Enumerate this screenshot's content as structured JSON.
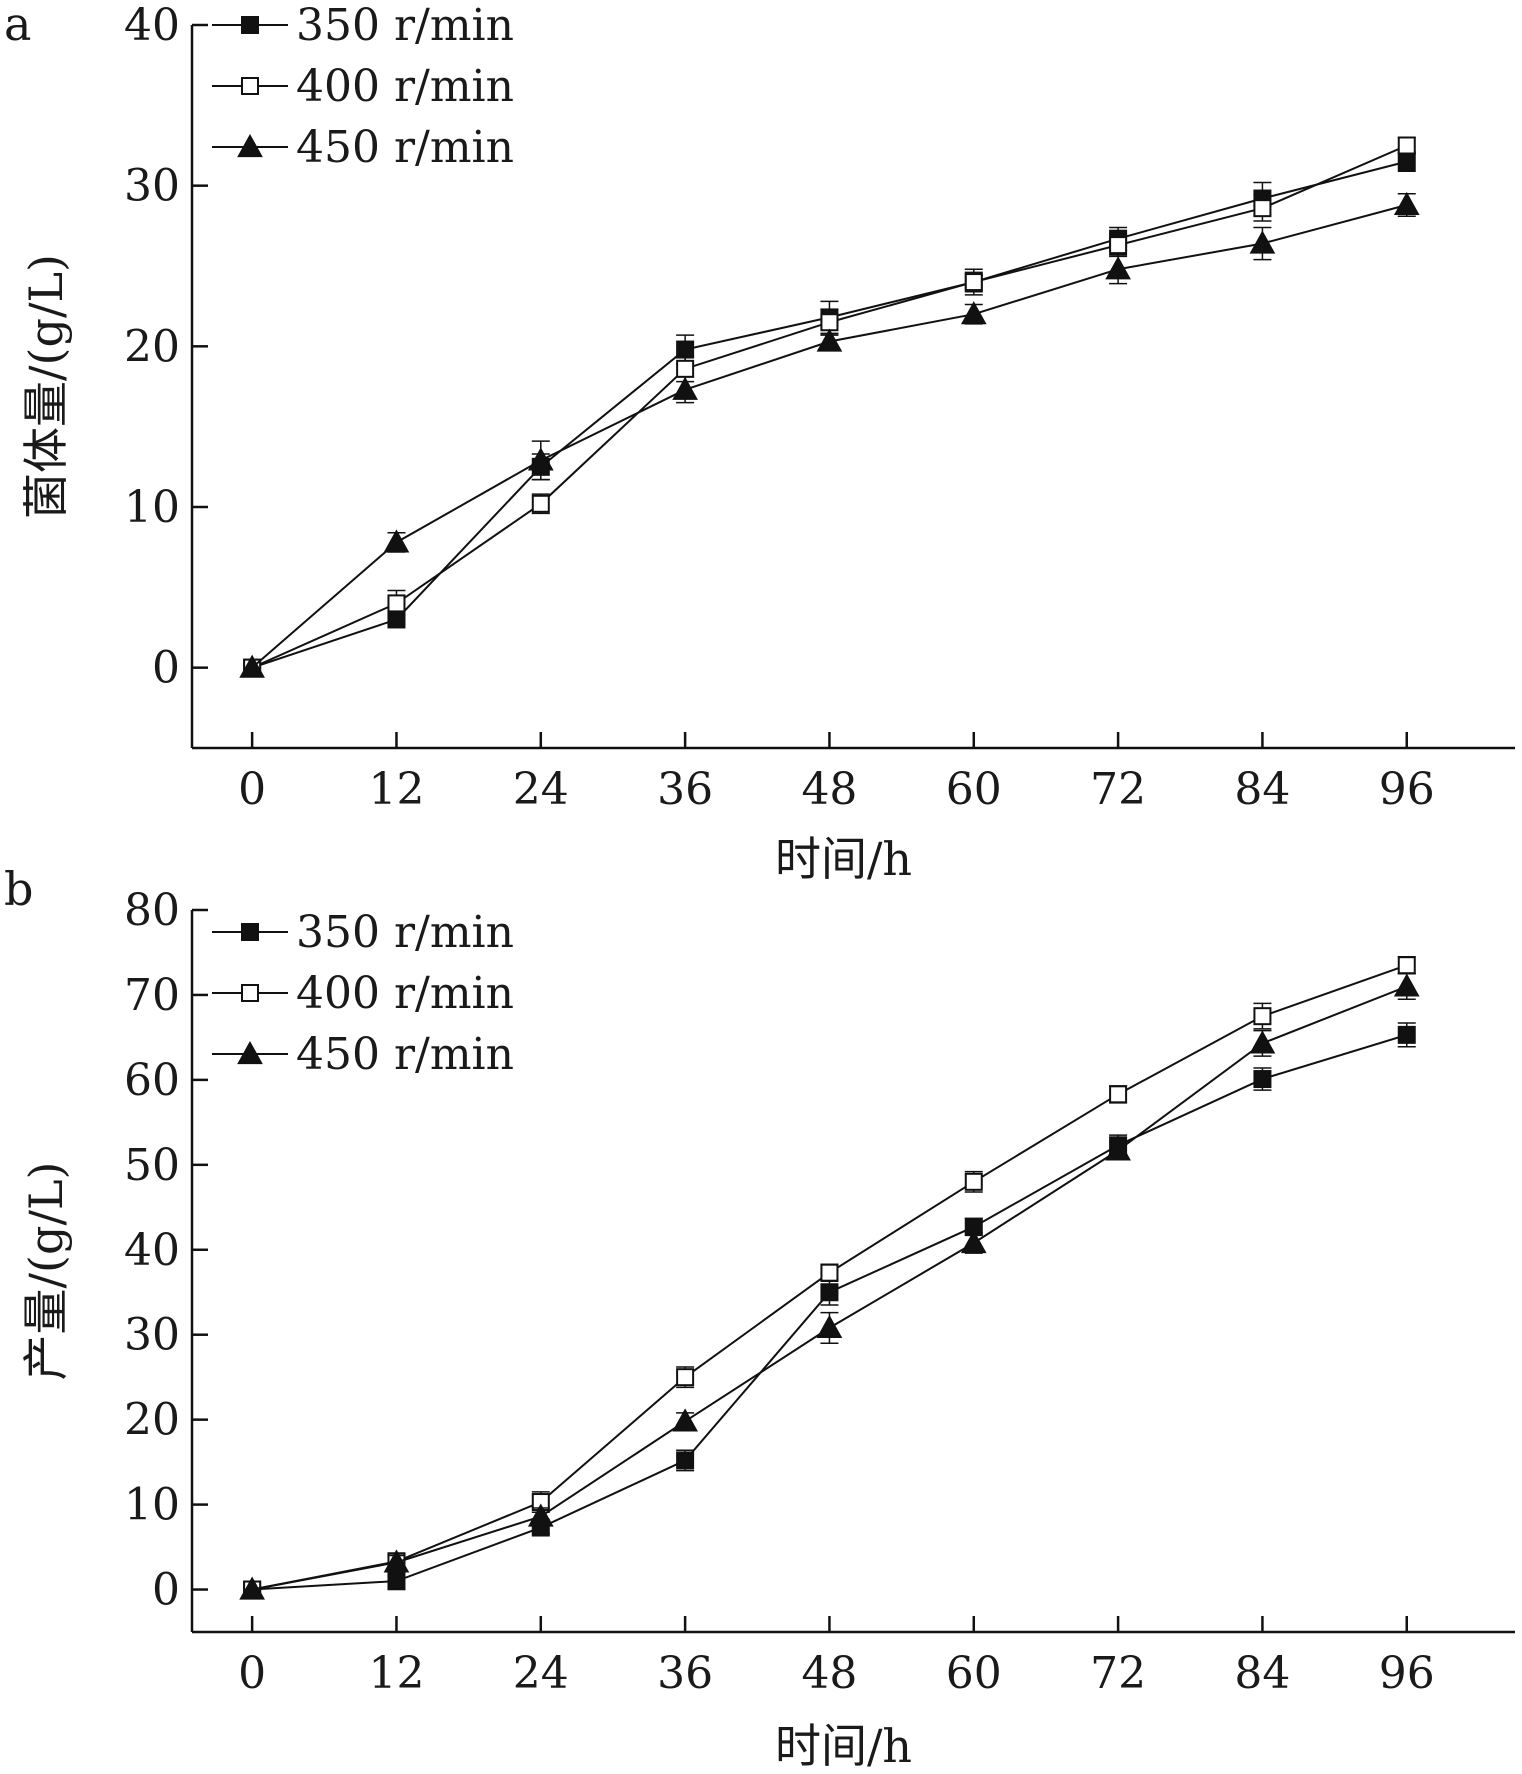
{
  "chart_data": [
    {
      "panel": "a",
      "type": "line",
      "x": [
        0,
        12,
        24,
        36,
        48,
        60,
        72,
        84,
        96
      ],
      "xticks": [
        0,
        12,
        24,
        36,
        48,
        60,
        72,
        84,
        96
      ],
      "xlim": [
        -5,
        105
      ],
      "ylim": [
        -5,
        40
      ],
      "yticks": [
        0,
        10,
        20,
        30,
        40
      ],
      "xlabel": "时间/h",
      "ylabel": "菌体量/(g/L)",
      "legend": "top-left",
      "grid": false,
      "series": [
        {
          "name": "350 r/min",
          "marker": "filled-square",
          "values": [
            0,
            3.0,
            12.5,
            19.8,
            21.8,
            24.0,
            26.7,
            29.2,
            31.5
          ],
          "errors": [
            0,
            0.3,
            0.8,
            0.9,
            1.0,
            0.6,
            0.7,
            1.0,
            0.6
          ]
        },
        {
          "name": "400 r/min",
          "marker": "open-square",
          "values": [
            0,
            4.0,
            10.2,
            18.6,
            21.5,
            24.0,
            26.3,
            28.6,
            32.5
          ],
          "errors": [
            0,
            0.8,
            0.6,
            0.8,
            0.8,
            0.8,
            0.7,
            0.8,
            0.5
          ]
        },
        {
          "name": "450 r/min",
          "marker": "filled-triangle",
          "values": [
            0,
            7.8,
            12.9,
            17.3,
            20.3,
            22.0,
            24.8,
            26.4,
            28.8
          ],
          "errors": [
            0,
            0.6,
            1.2,
            0.8,
            0.5,
            0.6,
            0.9,
            1.0,
            0.7
          ]
        }
      ]
    },
    {
      "panel": "b",
      "type": "line",
      "x": [
        0,
        12,
        24,
        36,
        48,
        60,
        72,
        84,
        96
      ],
      "xticks": [
        0,
        12,
        24,
        36,
        48,
        60,
        72,
        84,
        96
      ],
      "xlim": [
        -5,
        105
      ],
      "ylim": [
        -5,
        80
      ],
      "yticks": [
        0,
        10,
        20,
        30,
        40,
        50,
        60,
        70,
        80
      ],
      "xlabel": "时间/h",
      "ylabel": "产量/(g/L)",
      "legend": "top-left",
      "grid": false,
      "series": [
        {
          "name": "350 r/min",
          "marker": "filled-square",
          "values": [
            0,
            1.0,
            7.3,
            15.2,
            35.0,
            42.7,
            52.3,
            60.1,
            65.3
          ],
          "errors": [
            0,
            1.0,
            0.7,
            1.2,
            1.5,
            1.0,
            1.2,
            1.3,
            1.4
          ]
        },
        {
          "name": "400 r/min",
          "marker": "open-square",
          "values": [
            0,
            3.3,
            10.3,
            25.0,
            37.3,
            48.0,
            58.3,
            67.5,
            73.5
          ],
          "errors": [
            0,
            1.0,
            1.2,
            1.2,
            1.0,
            1.2,
            1.0,
            1.5,
            1.0
          ]
        },
        {
          "name": "450 r/min",
          "marker": "filled-triangle",
          "values": [
            0,
            3.2,
            8.6,
            19.8,
            30.8,
            40.8,
            51.7,
            64.3,
            71.0
          ],
          "errors": [
            0,
            0.8,
            1.0,
            1.0,
            1.8,
            1.2,
            1.0,
            1.5,
            1.5
          ]
        }
      ]
    }
  ]
}
